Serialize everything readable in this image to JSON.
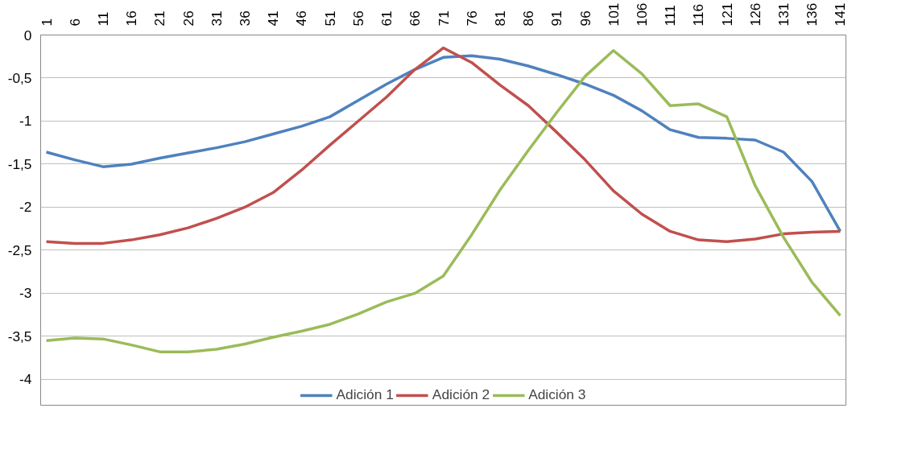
{
  "chart_data": {
    "type": "line",
    "x": [
      1,
      6,
      11,
      16,
      21,
      26,
      31,
      36,
      41,
      46,
      51,
      56,
      61,
      66,
      71,
      76,
      81,
      86,
      91,
      96,
      101,
      106,
      111,
      116,
      121,
      126,
      131,
      136,
      141
    ],
    "xlim": [
      0,
      142
    ],
    "xticks": [
      1,
      6,
      11,
      16,
      21,
      26,
      31,
      36,
      41,
      46,
      51,
      56,
      61,
      66,
      71,
      76,
      81,
      86,
      91,
      96,
      101,
      106,
      111,
      116,
      121,
      126,
      131,
      136,
      141
    ],
    "ylim": [
      -4.3,
      0
    ],
    "yticks": [
      0,
      {
        "value": -0.5,
        "label": "-0,5"
      },
      -1,
      {
        "value": -1.5,
        "label": "-1,5"
      },
      -2,
      {
        "value": -2.5,
        "label": "-2,5"
      },
      -3,
      {
        "value": -3.5,
        "label": "-3,5"
      },
      -4
    ],
    "grid": "y",
    "legend": "bottom",
    "marker": "none",
    "line_style": "solid",
    "series": [
      {
        "name": "Adición 1",
        "color": "#4f81bd",
        "values": [
          -1.36,
          -1.45,
          -1.53,
          -1.5,
          -1.43,
          -1.37,
          -1.31,
          -1.24,
          -1.15,
          -1.06,
          -0.95,
          -0.76,
          -0.57,
          -0.4,
          -0.26,
          -0.24,
          -0.28,
          -0.36,
          -0.46,
          -0.57,
          -0.7,
          -0.88,
          -1.1,
          -1.19,
          -1.2,
          -1.22,
          -1.36,
          -1.7,
          -2.28
        ]
      },
      {
        "name": "Adición 2",
        "color": "#c0504d",
        "values": [
          -2.4,
          -2.42,
          -2.42,
          -2.38,
          -2.32,
          -2.24,
          -2.13,
          -2.0,
          -1.83,
          -1.57,
          -1.28,
          -1.0,
          -0.72,
          -0.4,
          -0.15,
          -0.32,
          -0.58,
          -0.82,
          -1.13,
          -1.45,
          -1.81,
          -2.08,
          -2.28,
          -2.38,
          -2.4,
          -2.37,
          -2.31,
          -2.29,
          -2.28
        ]
      },
      {
        "name": "Adición 3",
        "color": "#9bbb59",
        "values": [
          -3.55,
          -3.52,
          -3.53,
          -3.6,
          -3.68,
          -3.68,
          -3.65,
          -3.59,
          -3.51,
          -3.44,
          -3.36,
          -3.24,
          -3.1,
          -3.0,
          -2.8,
          -2.32,
          -1.8,
          -1.34,
          -0.9,
          -0.48,
          -0.18,
          -0.45,
          -0.82,
          -0.8,
          -0.95,
          -1.75,
          -2.35,
          -2.87,
          -3.26
        ]
      }
    ]
  }
}
